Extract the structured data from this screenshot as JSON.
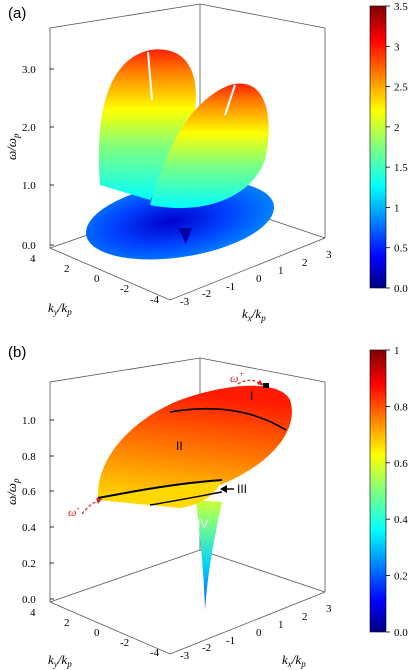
{
  "panels": [
    {
      "label": "(a)",
      "z_axis": {
        "label": "ω/ω",
        "sub": "p",
        "ticks": [
          "0.0",
          "1.0",
          "2.0",
          "3.0"
        ],
        "range": [
          0,
          3.5
        ]
      },
      "ky_axis": {
        "label": "k",
        "label_sub": "y",
        "denom": "k",
        "denom_sub": "p",
        "ticks": [
          "4",
          "2",
          "0",
          "-2",
          "-4"
        ]
      },
      "kx_axis": {
        "label": "k",
        "label_sub": "x",
        "denom": "k",
        "denom_sub": "p",
        "ticks": [
          "-3",
          "-2",
          "-1",
          "0",
          "1",
          "2",
          "3"
        ]
      },
      "colorbar": {
        "ticks": [
          "3.5",
          "3",
          "2.5",
          "2",
          "1.5",
          "1",
          "0.5",
          "0.0"
        ],
        "min": 0,
        "max": 3.5
      }
    },
    {
      "label": "(b)",
      "z_axis": {
        "label": "ω/ω",
        "sub": "p",
        "ticks": [
          "0.0",
          "0.2",
          "0.4",
          "0.6",
          "0.8",
          "1.0"
        ],
        "range": [
          0,
          1
        ]
      },
      "ky_axis": {
        "label": "k",
        "label_sub": "y",
        "denom": "k",
        "denom_sub": "p",
        "ticks": [
          "4",
          "2",
          "0",
          "-2",
          "-4"
        ]
      },
      "kx_axis": {
        "label": "k",
        "label_sub": "x",
        "denom": "k",
        "denom_sub": "p",
        "ticks": [
          "-3",
          "-2",
          "-1",
          "0",
          "1",
          "2",
          "3"
        ]
      },
      "colorbar": {
        "ticks": [
          "1",
          "0.8",
          "0.6",
          "0.4",
          "0.2",
          "0.0"
        ],
        "min": 0,
        "max": 1
      },
      "regions": [
        "I",
        "II",
        "III",
        "IV"
      ],
      "annotations": [
        {
          "text": "ω",
          "sup": "+"
        },
        {
          "text": "ω",
          "sup": "-"
        }
      ]
    }
  ],
  "colors": {
    "jet": [
      "#00007f",
      "#0000ff",
      "#007fff",
      "#00ffff",
      "#7fff7f",
      "#ffff00",
      "#ff7f00",
      "#ff0000",
      "#7f0000"
    ],
    "annotation": "#e02020"
  }
}
